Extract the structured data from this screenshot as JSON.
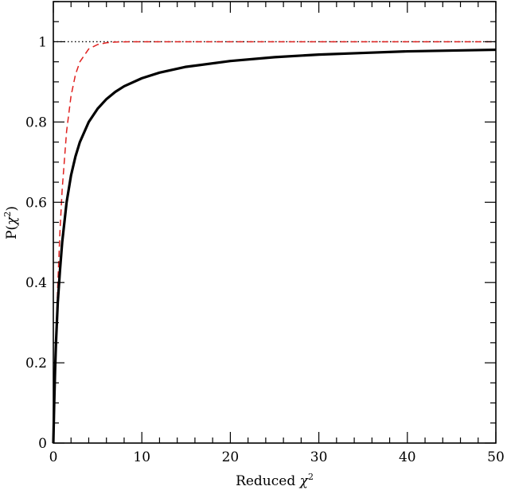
{
  "chart_data": {
    "type": "line",
    "title": "",
    "xlabel": "Reduced",
    "xlabel_symbol": "χ",
    "xlabel_sup": "2",
    "ylabel_prefix": "P(",
    "ylabel_symbol": "χ",
    "ylabel_sup": "2",
    "ylabel_suffix": ")",
    "xlim": [
      0,
      50
    ],
    "ylim": [
      0,
      1.1
    ],
    "xticks": [
      0,
      10,
      20,
      30,
      40,
      50
    ],
    "xtick_labels": [
      "0",
      "10",
      "20",
      "30",
      "40",
      "50"
    ],
    "yticks": [
      0,
      0.2,
      0.4,
      0.6,
      0.8,
      1.0
    ],
    "ytick_labels": [
      "0",
      "0.2",
      "0.4",
      "0.6",
      "0.8",
      "1"
    ],
    "grid": false,
    "series": [
      {
        "style": "solid",
        "color": "#000000",
        "x": [
          0,
          0.1,
          0.2,
          0.3,
          0.5,
          0.75,
          1,
          1.5,
          2,
          2.5,
          3,
          4,
          5,
          6,
          7,
          8,
          10,
          12,
          15,
          20,
          25,
          30,
          35,
          40,
          45,
          50
        ],
        "y": [
          0,
          0.1,
          0.182,
          0.25,
          0.35,
          0.43,
          0.5,
          0.6,
          0.667,
          0.714,
          0.75,
          0.8,
          0.833,
          0.857,
          0.875,
          0.889,
          0.909,
          0.923,
          0.9375,
          0.952,
          0.9615,
          0.968,
          0.972,
          0.976,
          0.978,
          0.98
        ]
      },
      {
        "style": "dashed",
        "color": "#e0211f",
        "x": [
          0,
          0.1,
          0.2,
          0.3,
          0.5,
          0.75,
          1,
          1.5,
          2,
          2.5,
          3,
          4,
          5,
          6,
          7,
          8,
          10,
          12,
          15,
          20,
          30,
          40,
          50
        ],
        "y": [
          0,
          0.095,
          0.181,
          0.259,
          0.393,
          0.528,
          0.632,
          0.777,
          0.865,
          0.918,
          0.95,
          0.982,
          0.993,
          0.9975,
          0.9991,
          0.9997,
          1.0,
          1.0,
          1.0,
          1.0,
          1.0,
          1.0,
          1.0
        ]
      },
      {
        "style": "dotted",
        "color": "#000000",
        "x": [
          0,
          50
        ],
        "y": [
          1,
          1
        ]
      }
    ]
  }
}
